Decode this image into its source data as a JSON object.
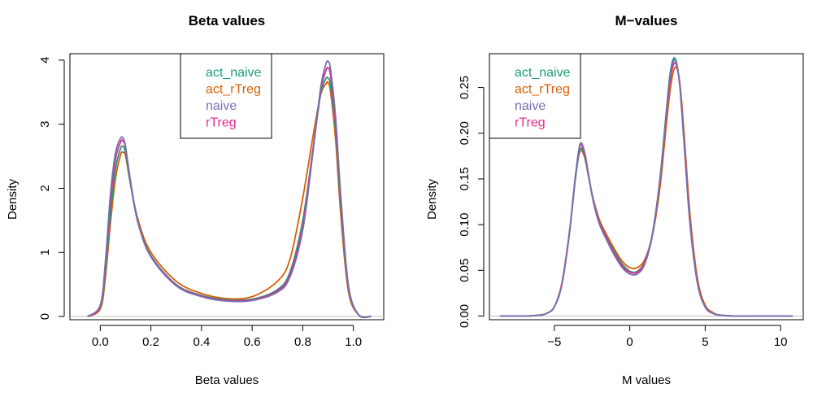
{
  "colors": {
    "act_naive": "#1b9e77",
    "act_rTreg": "#d95f02",
    "naive": "#7570b3",
    "rTreg": "#e7298a",
    "zero_line": "#bebebe",
    "axis": "#000000"
  },
  "chart_data": [
    {
      "type": "line",
      "title": "Beta values",
      "xlabel": "Beta values",
      "ylabel": "Density",
      "xlim": [
        -0.12,
        1.12
      ],
      "ylim": [
        -0.05,
        4.1
      ],
      "xticks": [
        0.0,
        0.2,
        0.4,
        0.6,
        0.8,
        1.0
      ],
      "xtick_labels": [
        "0.0",
        "0.2",
        "0.4",
        "0.6",
        "0.8",
        "1.0"
      ],
      "yticks": [
        0,
        1,
        2,
        3,
        4
      ],
      "ytick_labels": [
        "0",
        "1",
        "2",
        "3",
        "4"
      ],
      "legend": [
        "act_naive",
        "act_rTreg",
        "naive",
        "rTreg"
      ],
      "legend_position": "top-center",
      "grid": false,
      "x": [
        -0.05,
        0.0,
        0.02,
        0.04,
        0.06,
        0.08,
        0.09,
        0.1,
        0.12,
        0.15,
        0.2,
        0.3,
        0.4,
        0.5,
        0.6,
        0.7,
        0.75,
        0.8,
        0.84,
        0.87,
        0.89,
        0.9,
        0.91,
        0.93,
        0.95,
        0.98,
        1.02,
        1.07
      ],
      "series": [
        {
          "name": "act_naive",
          "values": [
            0,
            0.15,
            0.7,
            1.6,
            2.3,
            2.62,
            2.65,
            2.55,
            2.05,
            1.45,
            0.95,
            0.5,
            0.33,
            0.26,
            0.27,
            0.42,
            0.7,
            1.5,
            2.6,
            3.45,
            3.7,
            3.72,
            3.6,
            2.9,
            1.75,
            0.45,
            0.03,
            0
          ]
        },
        {
          "name": "act_rTreg",
          "values": [
            0,
            0.12,
            0.6,
            1.45,
            2.15,
            2.52,
            2.56,
            2.5,
            2.05,
            1.5,
            1.0,
            0.55,
            0.36,
            0.28,
            0.31,
            0.55,
            0.9,
            1.85,
            2.8,
            3.45,
            3.62,
            3.65,
            3.5,
            2.75,
            1.6,
            0.4,
            0.03,
            0
          ]
        },
        {
          "name": "naive",
          "values": [
            0,
            0.18,
            0.85,
            1.9,
            2.55,
            2.78,
            2.78,
            2.65,
            2.1,
            1.45,
            0.93,
            0.48,
            0.31,
            0.24,
            0.25,
            0.38,
            0.62,
            1.35,
            2.55,
            3.55,
            3.92,
            3.98,
            3.85,
            3.1,
            1.9,
            0.5,
            0.03,
            0
          ]
        },
        {
          "name": "rTreg",
          "values": [
            0,
            0.16,
            0.8,
            1.8,
            2.45,
            2.72,
            2.74,
            2.62,
            2.08,
            1.45,
            0.94,
            0.49,
            0.32,
            0.25,
            0.26,
            0.4,
            0.66,
            1.42,
            2.6,
            3.5,
            3.82,
            3.88,
            3.75,
            3.0,
            1.85,
            0.48,
            0.03,
            0
          ]
        }
      ]
    },
    {
      "type": "line",
      "title": "M−values",
      "xlabel": "M values",
      "ylabel": "Density",
      "xlim": [
        -9.3,
        11.5
      ],
      "ylim": [
        -0.004,
        0.287
      ],
      "xticks": [
        -5,
        0,
        5,
        10
      ],
      "xtick_labels": [
        "−5",
        "0",
        "5",
        "10"
      ],
      "yticks": [
        0.0,
        0.05,
        0.1,
        0.15,
        0.2,
        0.25
      ],
      "ytick_labels": [
        "0.00",
        "0.05",
        "0.10",
        "0.15",
        "0.20",
        "0.25"
      ],
      "legend": [
        "act_naive",
        "act_rTreg",
        "naive",
        "rTreg"
      ],
      "legend_position": "top-left",
      "grid": false,
      "x": [
        -8.6,
        -7,
        -6,
        -5.5,
        -5,
        -4.5,
        -4,
        -3.6,
        -3.3,
        -3.0,
        -2.7,
        -2.4,
        -2,
        -1.5,
        -1,
        -0.5,
        0,
        0.5,
        1,
        1.5,
        2,
        2.4,
        2.7,
        3.0,
        3.3,
        3.6,
        4,
        4.5,
        5,
        5.5,
        6,
        7,
        8,
        9,
        10,
        10.8
      ],
      "series": [
        {
          "name": "act_naive",
          "values": [
            0,
            0,
            0.001,
            0.003,
            0.01,
            0.035,
            0.09,
            0.15,
            0.182,
            0.176,
            0.15,
            0.125,
            0.103,
            0.085,
            0.07,
            0.057,
            0.049,
            0.049,
            0.06,
            0.09,
            0.15,
            0.22,
            0.268,
            0.282,
            0.255,
            0.19,
            0.1,
            0.035,
            0.01,
            0.003,
            0.001,
            0,
            0,
            0,
            0,
            0
          ]
        },
        {
          "name": "act_rTreg",
          "values": [
            0,
            0,
            0.001,
            0.003,
            0.01,
            0.036,
            0.092,
            0.152,
            0.18,
            0.174,
            0.15,
            0.127,
            0.105,
            0.088,
            0.073,
            0.06,
            0.053,
            0.053,
            0.062,
            0.088,
            0.14,
            0.205,
            0.25,
            0.272,
            0.258,
            0.2,
            0.11,
            0.04,
            0.012,
            0.004,
            0.001,
            0,
            0,
            0,
            0,
            0
          ]
        },
        {
          "name": "naive",
          "values": [
            0,
            0,
            0.001,
            0.003,
            0.01,
            0.034,
            0.09,
            0.153,
            0.188,
            0.18,
            0.152,
            0.124,
            0.1,
            0.082,
            0.066,
            0.053,
            0.046,
            0.046,
            0.057,
            0.088,
            0.148,
            0.218,
            0.265,
            0.28,
            0.255,
            0.19,
            0.1,
            0.035,
            0.01,
            0.003,
            0.001,
            0,
            0,
            0,
            0,
            0
          ]
        },
        {
          "name": "rTreg",
          "values": [
            0,
            0,
            0.001,
            0.003,
            0.01,
            0.035,
            0.091,
            0.153,
            0.186,
            0.178,
            0.151,
            0.125,
            0.102,
            0.084,
            0.068,
            0.055,
            0.048,
            0.048,
            0.059,
            0.089,
            0.148,
            0.215,
            0.26,
            0.277,
            0.255,
            0.192,
            0.102,
            0.036,
            0.01,
            0.003,
            0.001,
            0,
            0,
            0,
            0,
            0
          ]
        }
      ]
    }
  ]
}
